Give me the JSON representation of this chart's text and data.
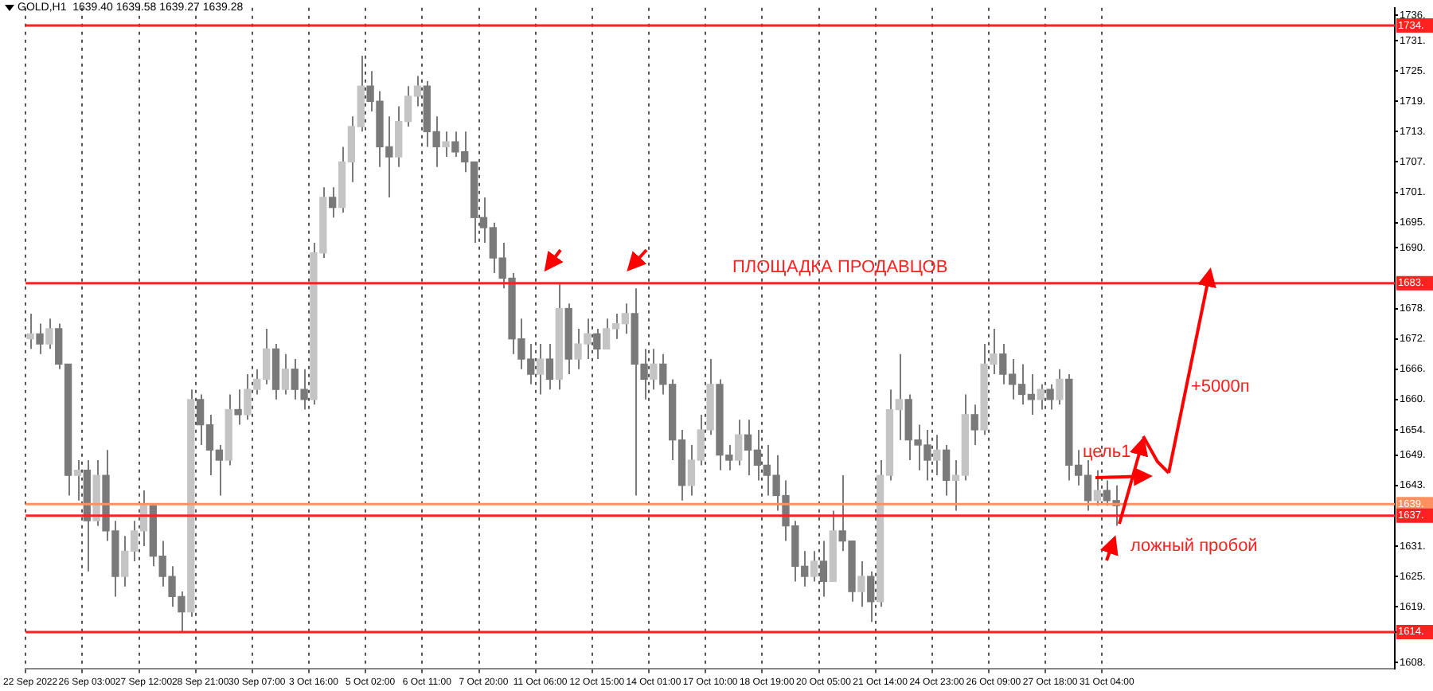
{
  "chart_data": {
    "type": "candlestick",
    "title": "GOLD,H1  1639.40 1639.58 1639.27 1639.28",
    "color": "#7a7a7a",
    "categories": [
      "22 Sep 2022",
      null,
      null,
      null,
      null,
      null,
      "26 Sep 03:00",
      null,
      null,
      null,
      null,
      null,
      "27 Sep 12:00",
      null,
      null,
      null,
      null,
      null,
      "28 Sep 21:00",
      null,
      null,
      null,
      null,
      null,
      "30 Sep 07:00",
      null,
      null,
      null,
      null,
      null,
      "3 Oct 16:00",
      null,
      null,
      null,
      null,
      null,
      "5 Oct 02:00",
      null,
      null,
      null,
      null,
      null,
      "6 Oct 11:00",
      null,
      null,
      null,
      null,
      null,
      "7 Oct 20:00",
      null,
      null,
      null,
      null,
      null,
      "11 Oct 06:00",
      null,
      null,
      null,
      null,
      null,
      "12 Oct 15:00",
      null,
      null,
      null,
      null,
      null,
      "14 Oct 01:00",
      null,
      null,
      null,
      null,
      null,
      "17 Oct 10:00",
      null,
      null,
      null,
      null,
      null,
      "18 Oct 19:00",
      null,
      null,
      null,
      null,
      null,
      "20 Oct 05:00",
      null,
      null,
      null,
      null,
      null,
      "21 Oct 14:00",
      null,
      null,
      null,
      null,
      null,
      "24 Oct 23:00",
      null,
      null,
      null,
      null,
      null,
      "26 Oct 09:00",
      null,
      null,
      null,
      null,
      null,
      "27 Oct 18:00",
      null,
      null,
      null,
      null,
      null,
      "31 Oct 04:00",
      null,
      null,
      null,
      null,
      null,
      null,
      null,
      null,
      null,
      null,
      null,
      null,
      null,
      null,
      null,
      null,
      null,
      null,
      null,
      null,
      null,
      null,
      null,
      null,
      null,
      null,
      null,
      null,
      null,
      null
    ],
    "ohlc": [
      [
        1672,
        1677,
        1670,
        1673
      ],
      [
        1673,
        1675,
        1669,
        1671
      ],
      [
        1671,
        1676,
        1670,
        1674
      ],
      [
        1674,
        1675,
        1666,
        1667
      ],
      [
        1667,
        1667,
        1641,
        1645
      ],
      [
        1645,
        1648,
        1640,
        1646
      ],
      [
        1646,
        1648,
        1626,
        1636
      ],
      [
        1636,
        1648,
        1635,
        1645
      ],
      [
        1645,
        1650,
        1632,
        1634
      ],
      [
        1634,
        1636,
        1621,
        1625
      ],
      [
        1625,
        1633,
        1623,
        1630
      ],
      [
        1630,
        1636,
        1628,
        1634
      ],
      [
        1634,
        1642,
        1631,
        1639
      ],
      [
        1639,
        1639,
        1627,
        1629
      ],
      [
        1629,
        1632,
        1623,
        1625
      ],
      [
        1625,
        1627,
        1619,
        1621
      ],
      [
        1621,
        1622,
        1614,
        1618
      ],
      [
        1618,
        1662,
        1617,
        1660
      ],
      [
        1660,
        1661,
        1651,
        1655
      ],
      [
        1655,
        1657,
        1645,
        1650
      ],
      [
        1650,
        1651,
        1641,
        1648
      ],
      [
        1648,
        1661,
        1647,
        1658
      ],
      [
        1658,
        1662,
        1655,
        1657
      ],
      [
        1657,
        1665,
        1656,
        1662
      ],
      [
        1662,
        1666,
        1661,
        1664
      ],
      [
        1664,
        1674,
        1663,
        1670
      ],
      [
        1670,
        1671,
        1660,
        1662
      ],
      [
        1662,
        1669,
        1661,
        1666
      ],
      [
        1666,
        1668,
        1660,
        1662
      ],
      [
        1662,
        1666,
        1658,
        1660
      ],
      [
        1660,
        1691,
        1659,
        1689
      ],
      [
        1689,
        1702,
        1688,
        1700
      ],
      [
        1700,
        1702,
        1696,
        1698
      ],
      [
        1698,
        1710,
        1697,
        1707
      ],
      [
        1707,
        1716,
        1703,
        1714
      ],
      [
        1714,
        1728,
        1713,
        1722
      ],
      [
        1722,
        1725,
        1717,
        1719
      ],
      [
        1719,
        1721,
        1706,
        1710
      ],
      [
        1710,
        1716,
        1700,
        1708
      ],
      [
        1708,
        1718,
        1706,
        1715
      ],
      [
        1715,
        1722,
        1714,
        1720
      ],
      [
        1720,
        1724,
        1718,
        1722
      ],
      [
        1722,
        1723,
        1710,
        1713
      ],
      [
        1713,
        1716,
        1706,
        1710
      ],
      [
        1710,
        1713,
        1708,
        1711
      ],
      [
        1711,
        1713,
        1708,
        1709
      ],
      [
        1709,
        1713,
        1705,
        1707
      ],
      [
        1707,
        1707,
        1691,
        1696
      ],
      [
        1696,
        1700,
        1691,
        1694
      ],
      [
        1694,
        1695,
        1685,
        1688
      ],
      [
        1688,
        1691,
        1682,
        1684
      ],
      [
        1684,
        1685,
        1669,
        1672
      ],
      [
        1672,
        1676,
        1666,
        1668
      ],
      [
        1668,
        1671,
        1663,
        1665
      ],
      [
        1665,
        1671,
        1661,
        1668
      ],
      [
        1668,
        1671,
        1662,
        1664
      ],
      [
        1664,
        1683,
        1662,
        1678
      ],
      [
        1678,
        1679,
        1665,
        1668
      ],
      [
        1668,
        1674,
        1666,
        1671
      ],
      [
        1671,
        1676,
        1668,
        1673
      ],
      [
        1673,
        1674,
        1668,
        1670
      ],
      [
        1670,
        1676,
        1670,
        1674
      ],
      [
        1674,
        1677,
        1672,
        1675
      ],
      [
        1675,
        1679,
        1673,
        1677
      ],
      [
        1677,
        1682,
        1641,
        1667
      ],
      [
        1667,
        1670,
        1660,
        1664
      ],
      [
        1664,
        1670,
        1662,
        1667
      ],
      [
        1667,
        1669,
        1661,
        1663
      ],
      [
        1663,
        1664,
        1648,
        1652
      ],
      [
        1652,
        1654,
        1640,
        1643
      ],
      [
        1643,
        1651,
        1641,
        1648
      ],
      [
        1648,
        1657,
        1647,
        1654
      ],
      [
        1654,
        1668,
        1653,
        1663
      ],
      [
        1663,
        1664,
        1646,
        1649
      ],
      [
        1649,
        1651,
        1646,
        1648
      ],
      [
        1648,
        1656,
        1647,
        1653
      ],
      [
        1653,
        1656,
        1645,
        1650
      ],
      [
        1650,
        1654,
        1644,
        1647
      ],
      [
        1647,
        1651,
        1641,
        1645
      ],
      [
        1645,
        1649,
        1638,
        1641
      ],
      [
        1641,
        1644,
        1632,
        1635
      ],
      [
        1635,
        1636,
        1624,
        1627
      ],
      [
        1627,
        1630,
        1623,
        1625
      ],
      [
        1625,
        1630,
        1624,
        1628
      ],
      [
        1628,
        1632,
        1621,
        1624
      ],
      [
        1624,
        1638,
        1624,
        1634
      ],
      [
        1634,
        1645,
        1630,
        1632
      ],
      [
        1632,
        1632,
        1620,
        1622
      ],
      [
        1622,
        1628,
        1619,
        1625
      ],
      [
        1625,
        1626,
        1616,
        1620
      ],
      [
        1620,
        1648,
        1619,
        1645
      ],
      [
        1645,
        1662,
        1644,
        1658
      ],
      [
        1658,
        1669,
        1652,
        1660
      ],
      [
        1660,
        1661,
        1648,
        1652
      ],
      [
        1652,
        1655,
        1646,
        1651
      ],
      [
        1651,
        1654,
        1644,
        1648
      ],
      [
        1648,
        1653,
        1645,
        1650
      ],
      [
        1650,
        1651,
        1641,
        1644
      ],
      [
        1644,
        1648,
        1638,
        1645
      ],
      [
        1645,
        1661,
        1644,
        1657
      ],
      [
        1657,
        1659,
        1651,
        1654
      ],
      [
        1654,
        1671,
        1653,
        1667
      ],
      [
        1667,
        1674,
        1665,
        1669
      ],
      [
        1669,
        1671,
        1663,
        1665
      ],
      [
        1665,
        1668,
        1660,
        1663
      ],
      [
        1663,
        1667,
        1659,
        1661
      ],
      [
        1661,
        1665,
        1657,
        1660
      ],
      [
        1660,
        1663,
        1658,
        1662
      ],
      [
        1662,
        1663,
        1658,
        1660
      ],
      [
        1660,
        1666,
        1659,
        1664
      ],
      [
        1664,
        1665,
        1644,
        1647
      ],
      [
        1647,
        1650,
        1643,
        1645
      ],
      [
        1645,
        1648,
        1638,
        1640
      ],
      [
        1640,
        1646,
        1639,
        1642
      ],
      [
        1642,
        1644,
        1639,
        1640
      ],
      [
        1640,
        1643,
        1635,
        1639
      ],
      null,
      null,
      null,
      null,
      null,
      null,
      null,
      null,
      null,
      null,
      null,
      null,
      null,
      null,
      null,
      null,
      null,
      null,
      null,
      null,
      null,
      null,
      null,
      null,
      null,
      null,
      null,
      null,
      null
    ],
    "colors": [
      "#c4c4c4",
      "#7a7a7a",
      "#c4c4c4",
      "#7a7a7a",
      "#7a7a7a",
      "#c4c4c4",
      "#7a7a7a",
      "#c4c4c4",
      "#7a7a7a",
      "#7a7a7a",
      "#c4c4c4",
      "#c4c4c4",
      "#c4c4c4",
      "#7a7a7a",
      "#7a7a7a",
      "#7a7a7a",
      "#7a7a7a",
      "#c4c4c4",
      "#7a7a7a",
      "#7a7a7a",
      "#7a7a7a",
      "#c4c4c4",
      "#7a7a7a",
      "#c4c4c4",
      "#c4c4c4",
      "#c4c4c4",
      "#7a7a7a",
      "#c4c4c4",
      "#7a7a7a",
      "#7a7a7a",
      "#c4c4c4",
      "#c4c4c4",
      "#7a7a7a",
      "#c4c4c4",
      "#c4c4c4",
      "#c4c4c4",
      "#7a7a7a",
      "#7a7a7a",
      "#7a7a7a",
      "#c4c4c4",
      "#c4c4c4",
      "#c4c4c4",
      "#7a7a7a",
      "#7a7a7a",
      "#c4c4c4",
      "#7a7a7a",
      "#7a7a7a",
      "#7a7a7a",
      "#7a7a7a",
      "#7a7a7a",
      "#7a7a7a",
      "#7a7a7a",
      "#7a7a7a",
      "#7a7a7a",
      "#c4c4c4",
      "#7a7a7a",
      "#c4c4c4",
      "#7a7a7a",
      "#c4c4c4",
      "#c4c4c4",
      "#7a7a7a",
      "#c4c4c4",
      "#c4c4c4",
      "#c4c4c4",
      "#7a7a7a",
      "#7a7a7a",
      "#c4c4c4",
      "#7a7a7a",
      "#7a7a7a",
      "#7a7a7a",
      "#c4c4c4",
      "#c4c4c4",
      "#c4c4c4",
      "#7a7a7a",
      "#7a7a7a",
      "#c4c4c4",
      "#7a7a7a",
      "#7a7a7a",
      "#7a7a7a",
      "#7a7a7a",
      "#7a7a7a",
      "#7a7a7a",
      "#7a7a7a",
      "#c4c4c4",
      "#7a7a7a",
      "#c4c4c4",
      "#7a7a7a",
      "#7a7a7a",
      "#c4c4c4",
      "#7a7a7a",
      "#c4c4c4",
      "#c4c4c4",
      "#c4c4c4",
      "#7a7a7a",
      "#7a7a7a",
      "#7a7a7a",
      "#c4c4c4",
      "#7a7a7a",
      "#c4c4c4",
      "#c4c4c4",
      "#7a7a7a",
      "#c4c4c4",
      "#c4c4c4",
      "#7a7a7a",
      "#7a7a7a",
      "#7a7a7a",
      "#7a7a7a",
      "#c4c4c4",
      "#7a7a7a",
      "#c4c4c4",
      "#7a7a7a",
      "#7a7a7a",
      "#7a7a7a",
      "#c4c4c4",
      "#7a7a7a",
      "#7a7a7a",
      null,
      null,
      null,
      null,
      null,
      null,
      null,
      null,
      null,
      null,
      null,
      null,
      null,
      null,
      null,
      null,
      null,
      null,
      null,
      null,
      null,
      null,
      null,
      null,
      null,
      null,
      null,
      null,
      null
    ],
    "ylim": [
      1606.8,
      1737.5
    ],
    "yticks": [
      {
        "value": 1736,
        "label": "1736."
      },
      {
        "value": 1731,
        "label": "1731."
      },
      {
        "value": 1725,
        "label": "1725."
      },
      {
        "value": 1719,
        "label": "1719."
      },
      {
        "value": 1713,
        "label": "1713."
      },
      {
        "value": 1707,
        "label": "1707."
      },
      {
        "value": 1701,
        "label": "1701."
      },
      {
        "value": 1695,
        "label": "1695."
      },
      {
        "value": 1690,
        "label": "1690."
      },
      {
        "value": 1678,
        "label": "1678."
      },
      {
        "value": 1672,
        "label": "1672."
      },
      {
        "value": 1666,
        "label": "1666."
      },
      {
        "value": 1660,
        "label": "1660."
      },
      {
        "value": 1654,
        "label": "1654."
      },
      {
        "value": 1649,
        "label": "1649."
      },
      {
        "value": 1643,
        "label": "1643."
      },
      {
        "value": 1631,
        "label": "1631."
      },
      {
        "value": 1625,
        "label": "1625."
      },
      {
        "value": 1619,
        "label": "1619."
      },
      {
        "value": 1614,
        "label": "1614."
      },
      {
        "value": 1608,
        "label": "1608."
      }
    ],
    "grid": "x",
    "ref_lines": [
      {
        "axis": "y",
        "value": 1734,
        "label": "1734.",
        "color": "#ff2020"
      },
      {
        "axis": "y",
        "value": 1683,
        "label": "1683.",
        "color": "#ff2020"
      },
      {
        "axis": "y",
        "value": 1639.3,
        "label": "1639.",
        "color": "#ff9060"
      },
      {
        "axis": "y",
        "value": 1637,
        "label": "1637.",
        "color": "#ff2020"
      },
      {
        "axis": "y",
        "value": 1614,
        "label": "1614.",
        "color": "#ff2020"
      }
    ],
    "annotations": [
      "ПЛОЩАДКА ПРОДАВЦОВ",
      "+5000п",
      "цель1",
      "ложный пробой"
    ]
  }
}
